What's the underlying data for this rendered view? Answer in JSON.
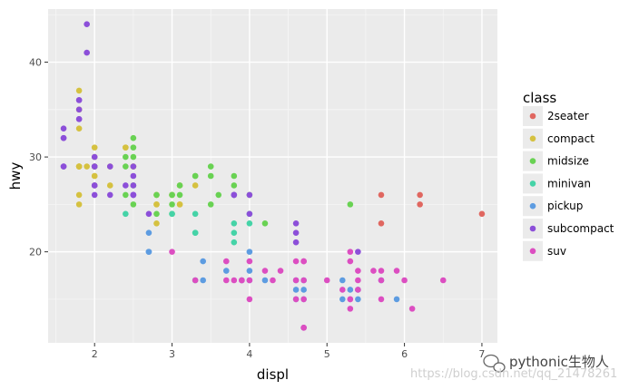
{
  "chart_data": {
    "type": "scatter",
    "title": "",
    "xlabel": "displ",
    "ylabel": "hwy",
    "xlim": [
      1.4,
      7.2
    ],
    "ylim": [
      10.4,
      45.6
    ],
    "x_ticks": [
      2,
      3,
      4,
      5,
      6,
      7
    ],
    "y_ticks": [
      20,
      30,
      40
    ],
    "grid": true,
    "legend_position": "right",
    "legend_title": "class",
    "series": [
      {
        "name": "2seater",
        "color": "#E06760",
        "points": [
          [
            5.7,
            26
          ],
          [
            5.7,
            23
          ],
          [
            6.2,
            26
          ],
          [
            6.2,
            25
          ],
          [
            7.0,
            24
          ]
        ]
      },
      {
        "name": "compact",
        "color": "#D5C140",
        "points": [
          [
            1.8,
            29
          ],
          [
            1.8,
            29
          ],
          [
            2.0,
            31
          ],
          [
            2.0,
            30
          ],
          [
            2.8,
            26
          ],
          [
            2.8,
            26
          ],
          [
            3.1,
            27
          ],
          [
            1.8,
            26
          ],
          [
            1.8,
            25
          ],
          [
            2.0,
            28
          ],
          [
            2.0,
            27
          ],
          [
            2.8,
            25
          ],
          [
            2.8,
            25
          ],
          [
            3.1,
            25
          ],
          [
            3.1,
            25
          ],
          [
            2.2,
            27
          ],
          [
            2.2,
            29
          ],
          [
            2.4,
            31
          ],
          [
            2.4,
            31
          ],
          [
            3.0,
            26
          ],
          [
            3.0,
            26
          ],
          [
            3.3,
            27
          ],
          [
            1.8,
            29
          ],
          [
            1.8,
            33
          ],
          [
            1.8,
            35
          ],
          [
            1.8,
            37
          ],
          [
            1.8,
            35
          ],
          [
            1.8,
            29
          ],
          [
            2.0,
            29
          ],
          [
            2.0,
            29
          ],
          [
            2.8,
            23
          ],
          [
            1.9,
            29
          ],
          [
            2.0,
            28
          ],
          [
            2.5,
            29
          ],
          [
            2.5,
            29
          ]
        ]
      },
      {
        "name": "midsize",
        "color": "#69D253",
        "points": [
          [
            2.4,
            30
          ],
          [
            2.4,
            26
          ],
          [
            2.5,
            32
          ],
          [
            2.5,
            31
          ],
          [
            2.5,
            30
          ],
          [
            2.5,
            27
          ],
          [
            2.8,
            26
          ],
          [
            3.0,
            26
          ],
          [
            3.0,
            26
          ],
          [
            3.1,
            27
          ],
          [
            3.1,
            26
          ],
          [
            3.3,
            28
          ],
          [
            3.3,
            28
          ],
          [
            3.5,
            29
          ],
          [
            3.5,
            28
          ],
          [
            3.5,
            25
          ],
          [
            3.6,
            26
          ],
          [
            3.8,
            26
          ],
          [
            3.8,
            28
          ],
          [
            3.8,
            27
          ],
          [
            4.0,
            26
          ],
          [
            4.2,
            23
          ],
          [
            5.3,
            25
          ],
          [
            3.0,
            25
          ],
          [
            3.0,
            24
          ],
          [
            2.5,
            25
          ],
          [
            2.4,
            29
          ],
          [
            2.0,
            29
          ],
          [
            2.8,
            24
          ]
        ]
      },
      {
        "name": "minivan",
        "color": "#45D3A7",
        "points": [
          [
            2.4,
            24
          ],
          [
            3.0,
            24
          ],
          [
            3.3,
            22
          ],
          [
            3.3,
            22
          ],
          [
            3.3,
            24
          ],
          [
            3.8,
            23
          ],
          [
            3.8,
            21
          ],
          [
            3.8,
            22
          ],
          [
            4.0,
            23
          ],
          [
            4.0,
            24
          ],
          [
            3.3,
            17
          ]
        ]
      },
      {
        "name": "pickup",
        "color": "#5D9CE1",
        "points": [
          [
            2.7,
            20
          ],
          [
            2.7,
            22
          ],
          [
            2.7,
            20
          ],
          [
            3.4,
            17
          ],
          [
            3.4,
            19
          ],
          [
            3.7,
            18
          ],
          [
            4.0,
            20
          ],
          [
            4.0,
            18
          ],
          [
            4.0,
            17
          ],
          [
            4.7,
            17
          ],
          [
            4.7,
            16
          ],
          [
            4.7,
            12
          ],
          [
            4.6,
            15
          ],
          [
            4.6,
            16
          ],
          [
            4.6,
            17
          ],
          [
            5.2,
            15
          ],
          [
            5.2,
            17
          ],
          [
            5.4,
            16
          ],
          [
            5.4,
            15
          ],
          [
            5.3,
            16
          ],
          [
            5.7,
            17
          ],
          [
            5.9,
            15
          ],
          [
            4.2,
            17
          ],
          [
            3.9,
            17
          ],
          [
            4.7,
            15
          ]
        ]
      },
      {
        "name": "subcompact",
        "color": "#8C4FD9",
        "points": [
          [
            1.6,
            33
          ],
          [
            1.6,
            32
          ],
          [
            1.6,
            29
          ],
          [
            1.6,
            32
          ],
          [
            1.6,
            29
          ],
          [
            1.8,
            34
          ],
          [
            1.8,
            36
          ],
          [
            1.8,
            36
          ],
          [
            1.9,
            44
          ],
          [
            1.9,
            41
          ],
          [
            2.0,
            29
          ],
          [
            2.0,
            26
          ],
          [
            2.2,
            26
          ],
          [
            2.5,
            28
          ],
          [
            2.5,
            29
          ],
          [
            2.0,
            27
          ],
          [
            2.0,
            29
          ],
          [
            1.8,
            35
          ],
          [
            3.8,
            26
          ],
          [
            3.8,
            26
          ],
          [
            4.0,
            26
          ],
          [
            4.6,
            23
          ],
          [
            4.6,
            22
          ],
          [
            4.6,
            21
          ],
          [
            5.4,
            20
          ],
          [
            2.5,
            26
          ],
          [
            2.5,
            26
          ],
          [
            2.5,
            26
          ],
          [
            2.5,
            26
          ],
          [
            2.4,
            27
          ],
          [
            1.8,
            34
          ],
          [
            2.0,
            30
          ],
          [
            2.5,
            27
          ],
          [
            2.7,
            24
          ],
          [
            4.0,
            24
          ],
          [
            3.8,
            26
          ],
          [
            2.0,
            27
          ],
          [
            2.2,
            29
          ]
        ]
      },
      {
        "name": "suv",
        "color": "#DC4EC1",
        "points": [
          [
            3.0,
            20
          ],
          [
            3.7,
            19
          ],
          [
            3.7,
            17
          ],
          [
            3.9,
            17
          ],
          [
            4.7,
            19
          ],
          [
            4.7,
            19
          ],
          [
            4.7,
            17
          ],
          [
            4.7,
            15
          ],
          [
            5.2,
            16
          ],
          [
            5.7,
            17
          ],
          [
            5.9,
            18
          ],
          [
            6.1,
            14
          ],
          [
            6.5,
            17
          ],
          [
            5.3,
            20
          ],
          [
            5.3,
            19
          ],
          [
            5.3,
            15
          ],
          [
            5.7,
            18
          ],
          [
            6.0,
            17
          ],
          [
            4.0,
            15
          ],
          [
            4.3,
            17
          ],
          [
            4.6,
            19
          ],
          [
            5.0,
            17
          ],
          [
            5.4,
            18
          ],
          [
            5.6,
            18
          ],
          [
            4.2,
            18
          ],
          [
            4.4,
            18
          ],
          [
            5.3,
            14
          ],
          [
            5.4,
            17
          ],
          [
            5.7,
            15
          ],
          [
            4.0,
            17
          ],
          [
            4.7,
            12
          ],
          [
            4.7,
            12
          ],
          [
            3.3,
            17
          ],
          [
            3.8,
            17
          ],
          [
            4.6,
            15
          ],
          [
            5.4,
            16
          ],
          [
            4.0,
            19
          ],
          [
            3.9,
            17
          ],
          [
            4.6,
            17
          ],
          [
            5.3,
            15
          ]
        ]
      }
    ]
  },
  "watermark": {
    "text": "pythonic生物人",
    "url": "https://blog.csdn.net/qq_21478261"
  }
}
